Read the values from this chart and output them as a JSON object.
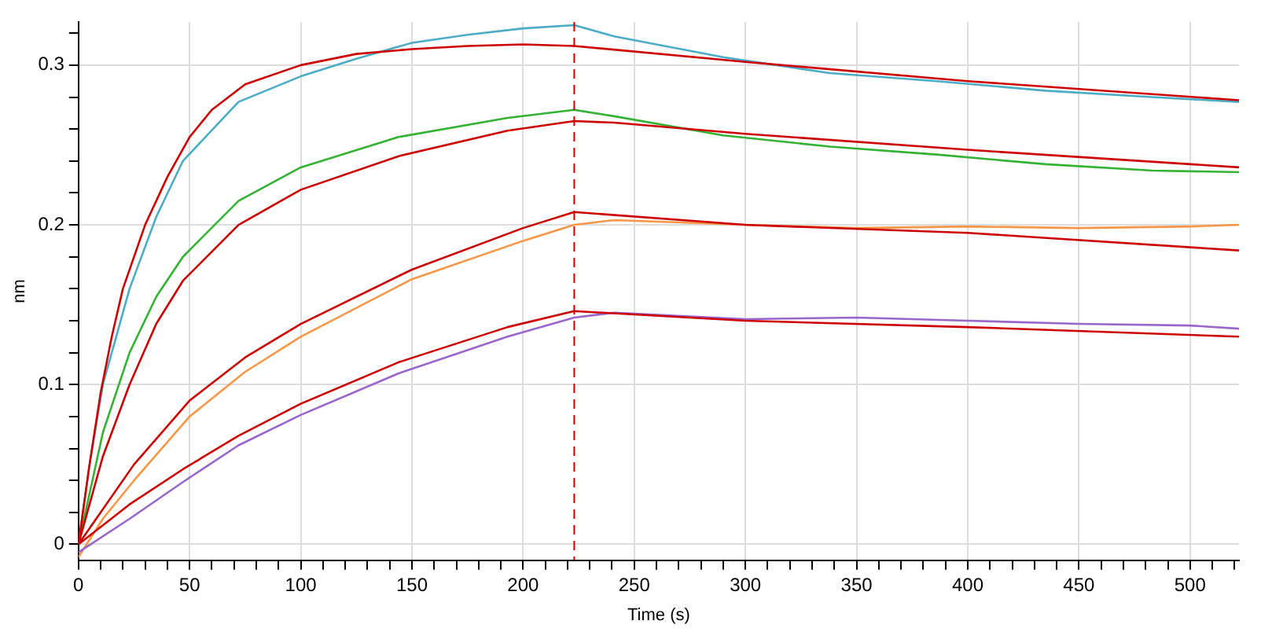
{
  "chart_data": {
    "type": "line",
    "xlabel": "Time (s)",
    "ylabel": "nm",
    "xlim": [
      0,
      522
    ],
    "ylim": [
      -0.01,
      0.327
    ],
    "xticks": [
      0,
      {
        "value": 10,
        "label": null
      },
      {
        "value": 20,
        "label": null
      },
      {
        "value": 30,
        "label": null
      },
      {
        "value": 40,
        "label": null
      },
      50,
      {
        "value": 60,
        "label": null
      },
      {
        "value": 70,
        "label": null
      },
      {
        "value": 80,
        "label": null
      },
      {
        "value": 90,
        "label": null
      },
      100,
      {
        "value": 110,
        "label": null
      },
      {
        "value": 120,
        "label": null
      },
      {
        "value": 130,
        "label": null
      },
      {
        "value": 140,
        "label": null
      },
      150,
      {
        "value": 160,
        "label": null
      },
      {
        "value": 170,
        "label": null
      },
      {
        "value": 180,
        "label": null
      },
      {
        "value": 190,
        "label": null
      },
      200,
      {
        "value": 210,
        "label": null
      },
      {
        "value": 220,
        "label": null
      },
      {
        "value": 230,
        "label": null
      },
      {
        "value": 240,
        "label": null
      },
      250,
      {
        "value": 260,
        "label": null
      },
      {
        "value": 270,
        "label": null
      },
      {
        "value": 280,
        "label": null
      },
      {
        "value": 290,
        "label": null
      },
      300,
      {
        "value": 310,
        "label": null
      },
      {
        "value": 320,
        "label": null
      },
      {
        "value": 330,
        "label": null
      },
      {
        "value": 340,
        "label": null
      },
      350,
      {
        "value": 360,
        "label": null
      },
      {
        "value": 370,
        "label": null
      },
      {
        "value": 380,
        "label": null
      },
      {
        "value": 390,
        "label": null
      },
      400,
      {
        "value": 410,
        "label": null
      },
      {
        "value": 420,
        "label": null
      },
      {
        "value": 430,
        "label": null
      },
      {
        "value": 440,
        "label": null
      },
      450,
      {
        "value": 460,
        "label": null
      },
      {
        "value": 470,
        "label": null
      },
      {
        "value": 480,
        "label": null
      },
      {
        "value": 490,
        "label": null
      },
      500,
      {
        "value": 510,
        "label": null
      },
      {
        "value": 520,
        "label": null
      }
    ],
    "yticks": [
      0,
      {
        "value": 0.02,
        "label": null
      },
      {
        "value": 0.04,
        "label": null
      },
      {
        "value": 0.06,
        "label": null
      },
      {
        "value": 0.08,
        "label": null
      },
      0.1,
      {
        "value": 0.12,
        "label": null
      },
      {
        "value": 0.14,
        "label": null
      },
      {
        "value": 0.16,
        "label": null
      },
      {
        "value": 0.18,
        "label": null
      },
      0.2,
      {
        "value": 0.22,
        "label": null
      },
      {
        "value": 0.24,
        "label": null
      },
      {
        "value": 0.26,
        "label": null
      },
      {
        "value": 0.28,
        "label": null
      },
      0.3,
      {
        "value": 0.32,
        "label": null
      }
    ],
    "grid": true,
    "legend": false,
    "marker": "none",
    "ref_lines": [
      {
        "axis": "x",
        "value": 223,
        "color": "#cc0000",
        "line_style": "dashed"
      }
    ],
    "series": [
      {
        "color": "#4bacc6",
        "x": [
          0,
          5,
          11,
          23,
          35,
          47,
          72,
          100,
          125,
          150,
          175,
          200,
          223,
          241,
          290,
          338,
          386,
          435,
          483,
          522
        ],
        "values": [
          0,
          0.05,
          0.1,
          0.16,
          0.205,
          0.24,
          0.277,
          0.293,
          0.304,
          0.314,
          0.319,
          0.323,
          0.325,
          0.318,
          0.305,
          0.295,
          0.29,
          0.284,
          0.28,
          0.277
        ]
      },
      {
        "color": "#33b233",
        "x": [
          0,
          11,
          23,
          35,
          47,
          72,
          100,
          144,
          193,
          223,
          241,
          290,
          338,
          386,
          435,
          483,
          522
        ],
        "values": [
          0,
          0.07,
          0.12,
          0.155,
          0.18,
          0.215,
          0.236,
          0.255,
          0.267,
          0.272,
          0.268,
          0.256,
          0.249,
          0.244,
          0.238,
          0.234,
          0.233
        ]
      },
      {
        "color": "#f79646",
        "x": [
          0,
          11,
          25,
          50,
          75,
          100,
          150,
          200,
          223,
          241,
          300,
          350,
          400,
          450,
          500,
          522
        ],
        "values": [
          -0.008,
          0.016,
          0.04,
          0.08,
          0.108,
          0.13,
          0.166,
          0.19,
          0.2,
          0.203,
          0.2,
          0.198,
          0.199,
          0.198,
          0.199,
          0.2
        ]
      },
      {
        "color": "#9966cc",
        "x": [
          0,
          23,
          47,
          72,
          100,
          144,
          193,
          223,
          241,
          300,
          350,
          400,
          450,
          500,
          522
        ],
        "values": [
          -0.005,
          0.016,
          0.039,
          0.062,
          0.081,
          0.107,
          0.13,
          0.142,
          0.145,
          0.141,
          0.142,
          0.14,
          0.138,
          0.137,
          0.135
        ]
      },
      {
        "color": "#cc0000",
        "x": [
          0,
          5,
          10,
          15,
          20,
          30,
          40,
          50,
          60,
          75,
          100,
          125,
          150,
          175,
          200,
          223,
          300,
          400,
          522
        ],
        "values": [
          0,
          0.05,
          0.095,
          0.13,
          0.16,
          0.2,
          0.23,
          0.255,
          0.272,
          0.288,
          0.3,
          0.307,
          0.31,
          0.312,
          0.313,
          0.312,
          0.302,
          0.29,
          0.278
        ]
      },
      {
        "color": "#cc0000",
        "x": [
          0,
          11,
          23,
          35,
          47,
          72,
          100,
          144,
          193,
          223,
          241,
          300,
          400,
          522
        ],
        "values": [
          0,
          0.055,
          0.1,
          0.138,
          0.165,
          0.2,
          0.222,
          0.243,
          0.259,
          0.265,
          0.264,
          0.257,
          0.247,
          0.236
        ]
      },
      {
        "color": "#cc0000",
        "x": [
          0,
          25,
          50,
          75,
          100,
          150,
          200,
          223,
          300,
          400,
          522
        ],
        "values": [
          0,
          0.05,
          0.09,
          0.117,
          0.138,
          0.172,
          0.198,
          0.208,
          0.2,
          0.195,
          0.184
        ]
      },
      {
        "color": "#cc0000",
        "x": [
          0,
          23,
          47,
          72,
          100,
          144,
          193,
          223,
          300,
          400,
          522
        ],
        "values": [
          0,
          0.025,
          0.047,
          0.068,
          0.088,
          0.114,
          0.136,
          0.146,
          0.14,
          0.136,
          0.13
        ]
      }
    ]
  }
}
